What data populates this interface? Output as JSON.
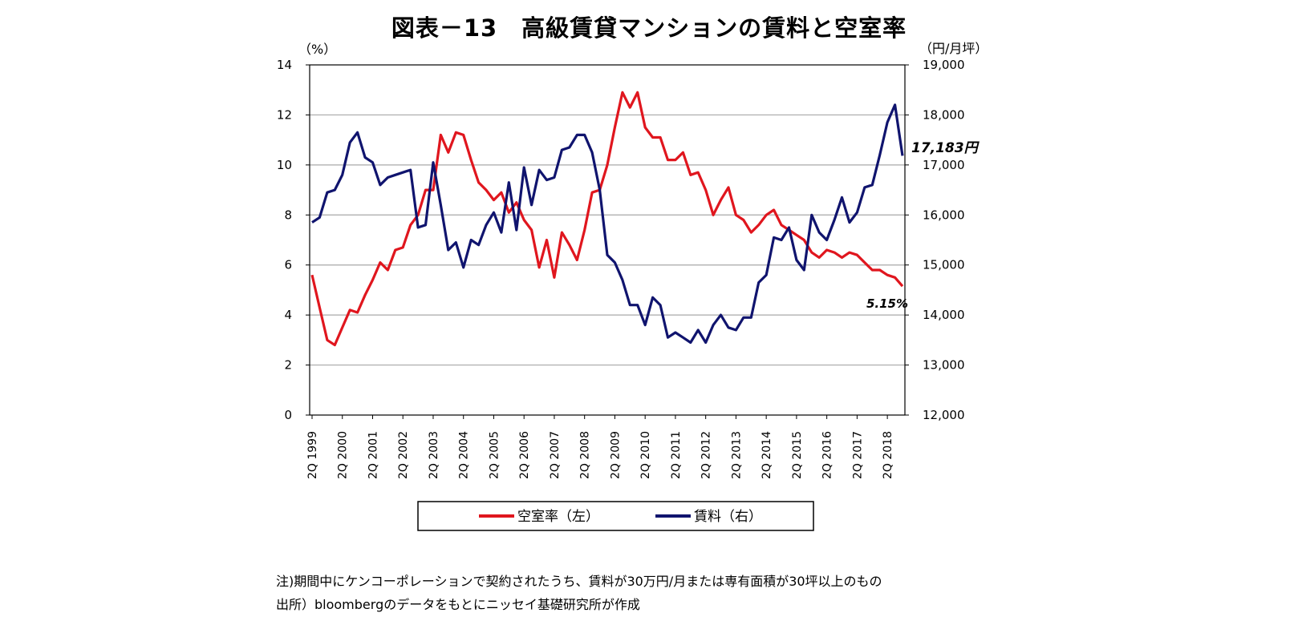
{
  "chart_data": {
    "type": "line",
    "title": "図表－13　高級賃貸マンションの賃料と空室率",
    "y_left_unit": "（%）",
    "y_right_unit": "（円/月坪）",
    "y_left_lim": [
      0,
      14
    ],
    "y_right_lim": [
      12000,
      19000
    ],
    "y_left_ticks": [
      "0",
      "2",
      "4",
      "6",
      "8",
      "10",
      "12",
      "14"
    ],
    "y_right_ticks": [
      "12,000",
      "13,000",
      "14,000",
      "15,000",
      "16,000",
      "17,000",
      "18,000",
      "19,000"
    ],
    "x_ticks": [
      "2Q 1999",
      "2Q 2000",
      "2Q 2001",
      "2Q 2002",
      "2Q 2003",
      "2Q 2004",
      "2Q 2005",
      "2Q 2006",
      "2Q 2007",
      "2Q 2008",
      "2Q 2009",
      "2Q 2010",
      "2Q 2011",
      "2Q 2012",
      "2Q 2013",
      "2Q 2014",
      "2Q 2015",
      "2Q 2016",
      "2Q 2017",
      "2Q 2018"
    ],
    "grid": true,
    "legend_position": "bottom",
    "series": [
      {
        "name": "空室率（左）",
        "axis": "left",
        "color": "#e0161e",
        "values": [
          5.6,
          4.3,
          3.0,
          2.8,
          3.5,
          4.2,
          4.1,
          4.8,
          5.4,
          6.1,
          5.8,
          6.6,
          6.7,
          7.6,
          8.0,
          9.0,
          9.0,
          11.2,
          10.5,
          11.3,
          11.2,
          10.2,
          9.3,
          9.0,
          8.6,
          8.9,
          8.1,
          8.5,
          7.8,
          7.4,
          5.9,
          7.0,
          5.5,
          7.3,
          6.8,
          6.2,
          7.4,
          8.9,
          9.0,
          10.0,
          11.5,
          12.9,
          12.3,
          12.9,
          11.5,
          11.1,
          11.1,
          10.2,
          10.2,
          10.5,
          9.6,
          9.7,
          9.0,
          8.0,
          8.6,
          9.1,
          8.0,
          7.8,
          7.3,
          7.6,
          8.0,
          8.2,
          7.6,
          7.4,
          7.2,
          7.0,
          6.5,
          6.3,
          6.6,
          6.5,
          6.3,
          6.5,
          6.4,
          6.1,
          5.8,
          5.8,
          5.6,
          5.5,
          5.15
        ]
      },
      {
        "name": "賃料（右）",
        "axis": "right",
        "color": "#10146e",
        "values": [
          15850,
          15950,
          16450,
          16500,
          16800,
          17450,
          17650,
          17150,
          17050,
          16600,
          16750,
          16800,
          16850,
          16900,
          15750,
          15800,
          17050,
          16200,
          15300,
          15450,
          14950,
          15500,
          15400,
          15800,
          16050,
          15650,
          16650,
          15700,
          16950,
          16200,
          16900,
          16700,
          16750,
          17300,
          17350,
          17600,
          17600,
          17250,
          16500,
          15200,
          15050,
          14700,
          14200,
          14200,
          13800,
          14350,
          14200,
          13550,
          13650,
          13550,
          13450,
          13700,
          13450,
          13800,
          14000,
          13750,
          13700,
          13950,
          13950,
          14650,
          14800,
          15550,
          15500,
          15750,
          15100,
          14900,
          16000,
          15650,
          15500,
          15900,
          16350,
          15850,
          16050,
          16550,
          16600,
          17200,
          17850,
          18200,
          17183
        ]
      }
    ],
    "annotations": {
      "rent_last": "17,183円",
      "vacancy_last": "5.15%"
    },
    "legend": [
      "空室率（左）",
      "賃料（右）"
    ]
  },
  "notes": [
    "注)期間中にケンコーポレーションで契約されたうち、賃料が30万円/月または専有面積が30坪以上のもの",
    "出所）bloombergのデータをもとにニッセイ基礎研究所が作成"
  ]
}
